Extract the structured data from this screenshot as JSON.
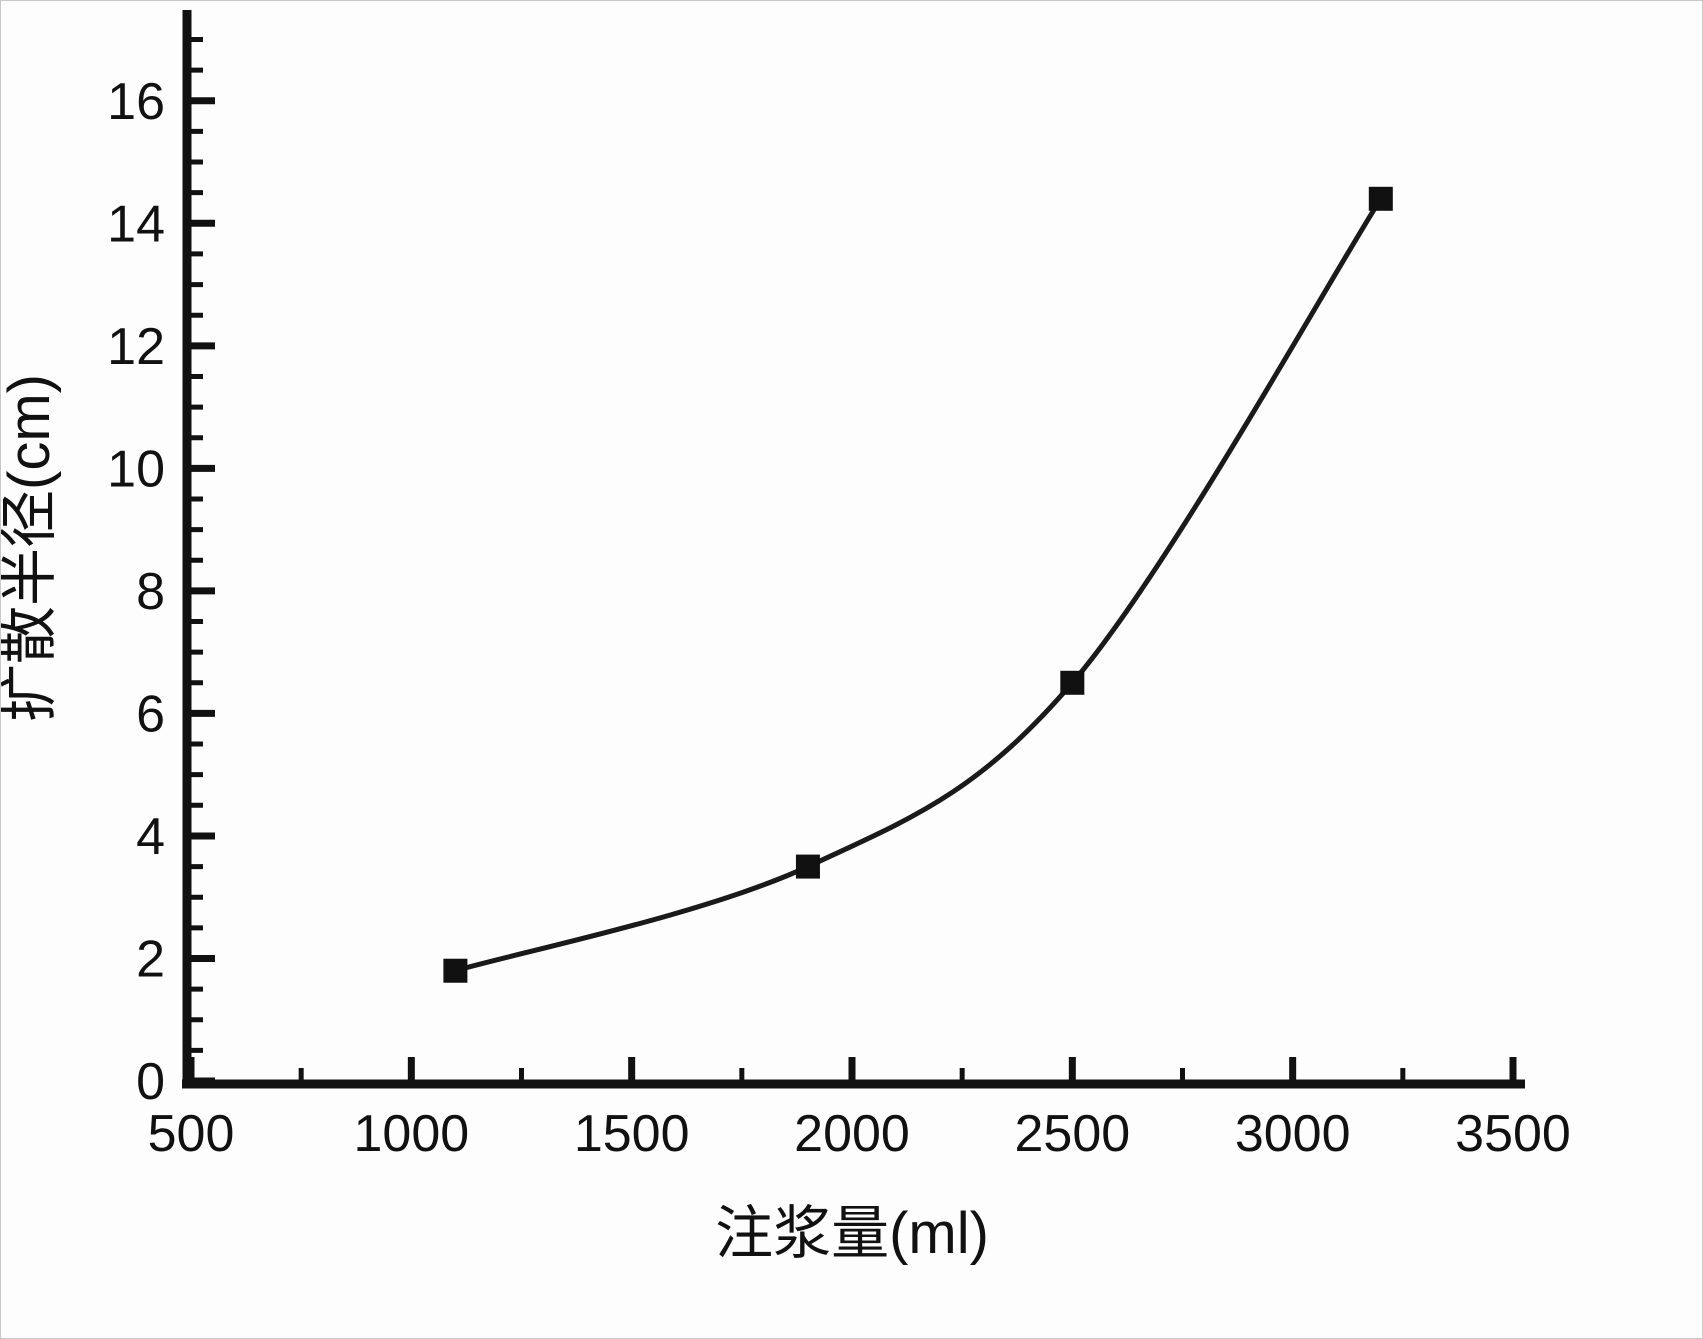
{
  "figure": {
    "title": "",
    "background": "#fdfdfd"
  },
  "colors": {
    "axis": "#111111",
    "line": "#1a1a1a",
    "marker": "#111111",
    "text": "#111111"
  },
  "chart_data": {
    "type": "line",
    "title": "",
    "xlabel": "注浆量(ml)",
    "ylabel": "扩散半径(cm)",
    "xlim": [
      500,
      3500
    ],
    "ylim": [
      0,
      17.4
    ],
    "xticks": [
      500,
      1000,
      1500,
      2000,
      2500,
      3000,
      3500
    ],
    "yticks": [
      0,
      2,
      4,
      6,
      8,
      10,
      12,
      14,
      16
    ],
    "x_minor_step": 250,
    "y_minor_step": 0.5,
    "grid": false,
    "legend_position": "none",
    "series": [
      {
        "name": "扩散半径",
        "marker": "square",
        "line_style": "smooth",
        "x": [
          1100,
          1900,
          2500,
          3200
        ],
        "y": [
          1.8,
          3.5,
          6.5,
          14.4
        ]
      }
    ]
  }
}
